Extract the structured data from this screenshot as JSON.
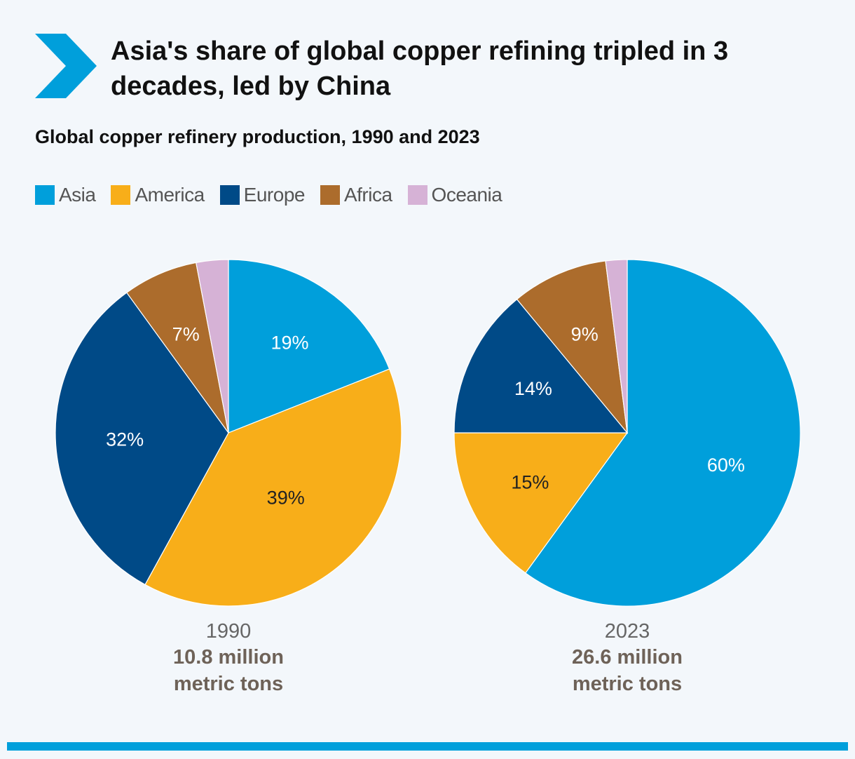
{
  "header": {
    "title": "Asia's share of global copper refining tripled in 3 decades, led by China",
    "subtitle": "Global copper refinery production, 1990 and 2023",
    "accent_color": "#009fdb",
    "icon": "chevron-right-icon"
  },
  "legend": [
    {
      "label": "Asia",
      "color": "#009fdb"
    },
    {
      "label": "America",
      "color": "#f8ae19"
    },
    {
      "label": "Europe",
      "color": "#004a87"
    },
    {
      "label": "Africa",
      "color": "#ac6c2c"
    },
    {
      "label": "Oceania",
      "color": "#d6b2d6"
    }
  ],
  "chart_data": [
    {
      "type": "pie",
      "title": "1990",
      "total": "10.8 million metric tons",
      "total_lines": [
        "10.8 million",
        "metric tons"
      ],
      "categories": [
        "Asia",
        "America",
        "Europe",
        "Africa",
        "Oceania"
      ],
      "values": [
        19,
        39,
        32,
        7,
        3
      ],
      "labels": [
        "19%",
        "39%",
        "32%",
        "7%",
        ""
      ],
      "label_colors": [
        "#ffffff",
        "#222222",
        "#ffffff",
        "#ffffff",
        "#ffffff"
      ],
      "start": "12 o'clock",
      "direction": "clockwise"
    },
    {
      "type": "pie",
      "title": "2023",
      "total": "26.6 million metric tons",
      "total_lines": [
        "26.6 million",
        "metric tons"
      ],
      "categories": [
        "Asia",
        "America",
        "Europe",
        "Africa",
        "Oceania"
      ],
      "values": [
        60,
        15,
        14,
        9,
        2
      ],
      "labels": [
        "60%",
        "15%",
        "14%",
        "9%",
        ""
      ],
      "label_colors": [
        "#ffffff",
        "#222222",
        "#ffffff",
        "#ffffff",
        "#ffffff"
      ],
      "start": "12 o'clock",
      "direction": "clockwise"
    }
  ]
}
